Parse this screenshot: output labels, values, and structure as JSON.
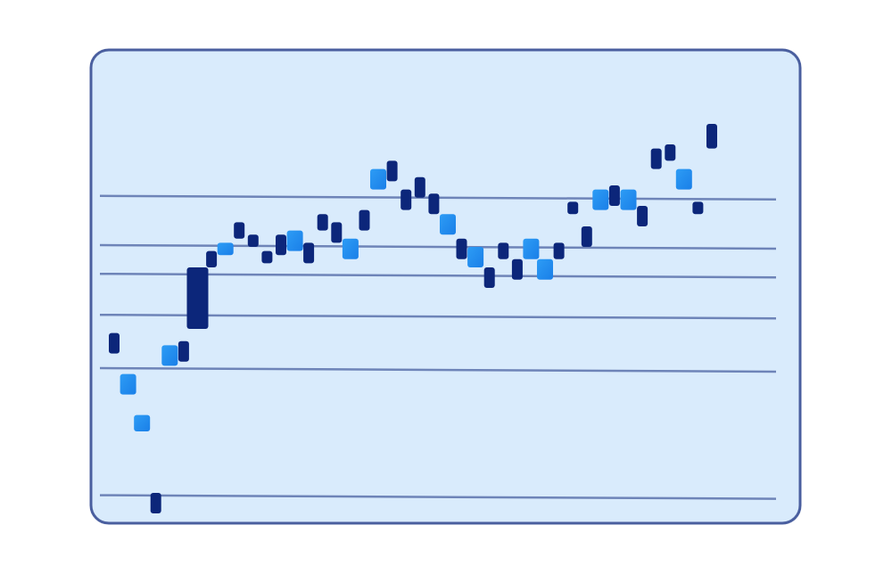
{
  "colors": {
    "panel_fill": "#d9ebfc",
    "panel_border": "#4a5f9f",
    "gridline": "#6e84b8",
    "dark_block": "#0c267a",
    "light_block_top": "#2d9cf5",
    "light_block_bottom": "#1a7fe8"
  },
  "chart_data": {
    "type": "bar",
    "title": "",
    "xlabel": "",
    "ylabel": "",
    "grid": true,
    "ylim": [
      0,
      100
    ],
    "gridlines": [
      4,
      35,
      48,
      58,
      65,
      77
    ],
    "series": [
      {
        "values": [
          {
            "x": 1,
            "low": 39,
            "high": 44,
            "color": "dark"
          },
          {
            "x": 2,
            "low": 29,
            "high": 34,
            "color": "light"
          },
          {
            "x": 3,
            "low": 20,
            "high": 24,
            "color": "light"
          },
          {
            "x": 4,
            "low": 0,
            "high": 5,
            "color": "dark"
          },
          {
            "x": 5,
            "low": 36,
            "high": 41,
            "color": "light"
          },
          {
            "x": 6,
            "low": 37,
            "high": 42,
            "color": "dark"
          },
          {
            "x": 7,
            "low": 45,
            "high": 60,
            "color": "dark"
          },
          {
            "x": 8,
            "low": 60,
            "high": 64,
            "color": "dark"
          },
          {
            "x": 9,
            "low": 63,
            "high": 66,
            "color": "light"
          },
          {
            "x": 10,
            "low": 67,
            "high": 71,
            "color": "dark"
          },
          {
            "x": 11,
            "low": 65,
            "high": 68,
            "color": "dark"
          },
          {
            "x": 12,
            "low": 61,
            "high": 64,
            "color": "dark"
          },
          {
            "x": 13,
            "low": 63,
            "high": 68,
            "color": "dark"
          },
          {
            "x": 14,
            "low": 64,
            "high": 69,
            "color": "light"
          },
          {
            "x": 15,
            "low": 61,
            "high": 66,
            "color": "dark"
          },
          {
            "x": 16,
            "low": 69,
            "high": 73,
            "color": "dark"
          },
          {
            "x": 17,
            "low": 66,
            "high": 71,
            "color": "dark"
          },
          {
            "x": 18,
            "low": 62,
            "high": 67,
            "color": "light"
          },
          {
            "x": 19,
            "low": 69,
            "high": 74,
            "color": "dark"
          },
          {
            "x": 20,
            "low": 79,
            "high": 84,
            "color": "light"
          },
          {
            "x": 21,
            "low": 81,
            "high": 86,
            "color": "dark"
          },
          {
            "x": 22,
            "low": 74,
            "high": 79,
            "color": "dark"
          },
          {
            "x": 23,
            "low": 77,
            "high": 82,
            "color": "dark"
          },
          {
            "x": 24,
            "low": 73,
            "high": 78,
            "color": "dark"
          },
          {
            "x": 25,
            "low": 68,
            "high": 73,
            "color": "light"
          },
          {
            "x": 26,
            "low": 62,
            "high": 67,
            "color": "dark"
          },
          {
            "x": 27,
            "low": 60,
            "high": 65,
            "color": "light"
          },
          {
            "x": 28,
            "low": 55,
            "high": 60,
            "color": "dark"
          },
          {
            "x": 29,
            "low": 62,
            "high": 66,
            "color": "dark"
          },
          {
            "x": 30,
            "low": 57,
            "high": 62,
            "color": "dark"
          },
          {
            "x": 31,
            "low": 62,
            "high": 67,
            "color": "light"
          },
          {
            "x": 32,
            "low": 57,
            "high": 62,
            "color": "light"
          },
          {
            "x": 33,
            "low": 62,
            "high": 66,
            "color": "dark"
          },
          {
            "x": 34,
            "low": 73,
            "high": 76,
            "color": "dark"
          },
          {
            "x": 35,
            "low": 65,
            "high": 70,
            "color": "dark"
          },
          {
            "x": 36,
            "low": 74,
            "high": 79,
            "color": "light"
          },
          {
            "x": 37,
            "low": 75,
            "high": 80,
            "color": "dark"
          },
          {
            "x": 38,
            "low": 74,
            "high": 79,
            "color": "light"
          },
          {
            "x": 39,
            "low": 70,
            "high": 75,
            "color": "dark"
          },
          {
            "x": 40,
            "low": 84,
            "high": 89,
            "color": "dark"
          },
          {
            "x": 41,
            "low": 86,
            "high": 90,
            "color": "dark"
          },
          {
            "x": 42,
            "low": 79,
            "high": 84,
            "color": "light"
          },
          {
            "x": 43,
            "low": 73,
            "high": 76,
            "color": "dark"
          },
          {
            "x": 44,
            "low": 89,
            "high": 95,
            "color": "dark"
          }
        ]
      }
    ]
  }
}
